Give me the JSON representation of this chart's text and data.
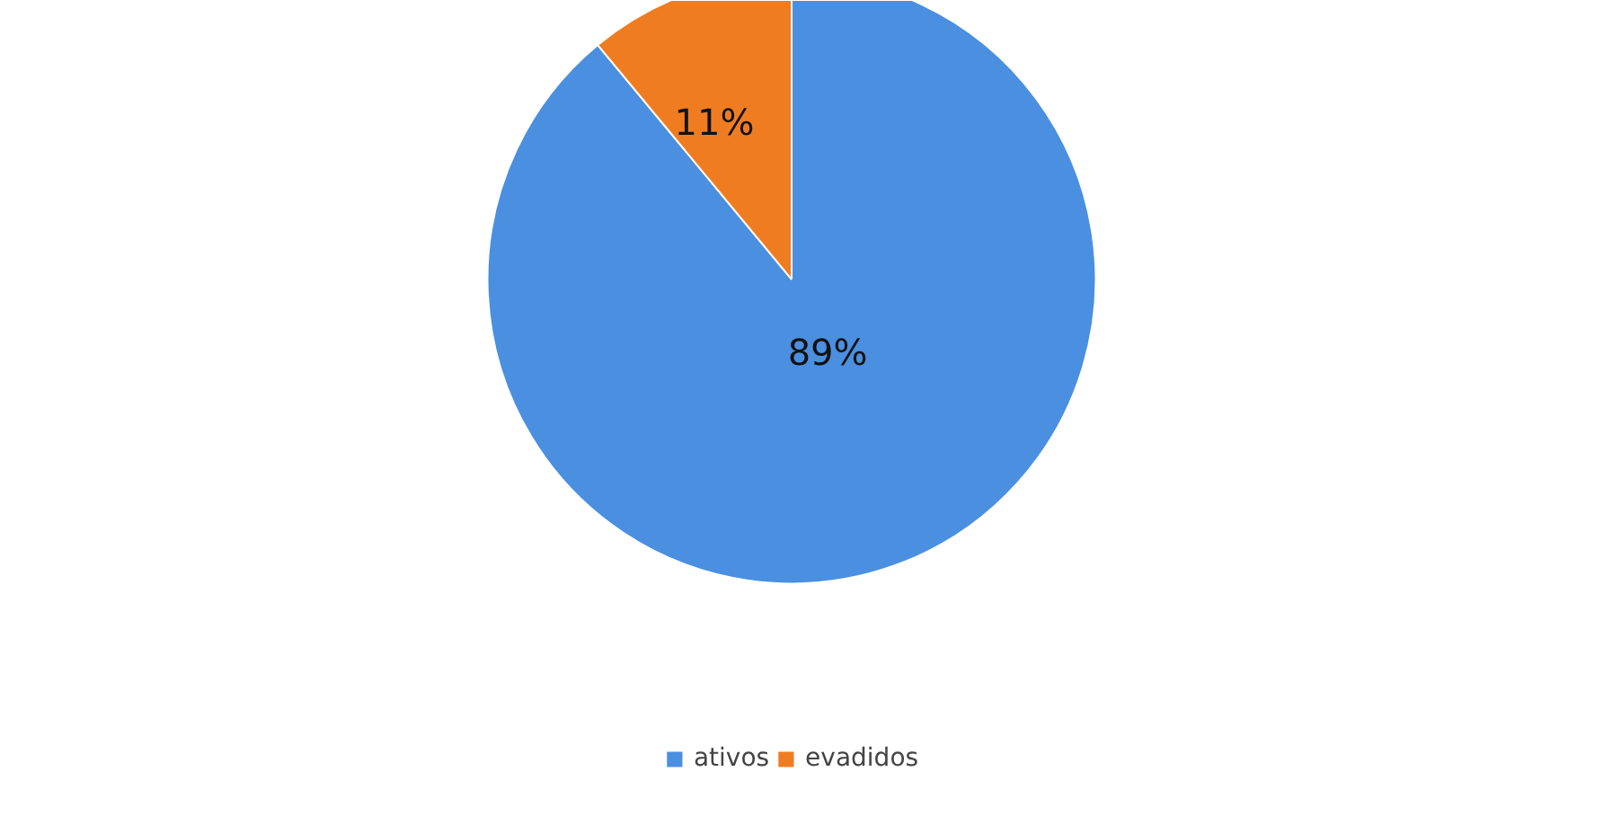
{
  "chart_data": {
    "type": "pie",
    "categories": [
      "ativos",
      "evadidos"
    ],
    "values": [
      89,
      11
    ],
    "colors": [
      "#4a8fe0",
      "#f07c22"
    ],
    "data_labels": true,
    "value_labels": [
      "89%",
      "11%"
    ],
    "legend": "bottom"
  }
}
